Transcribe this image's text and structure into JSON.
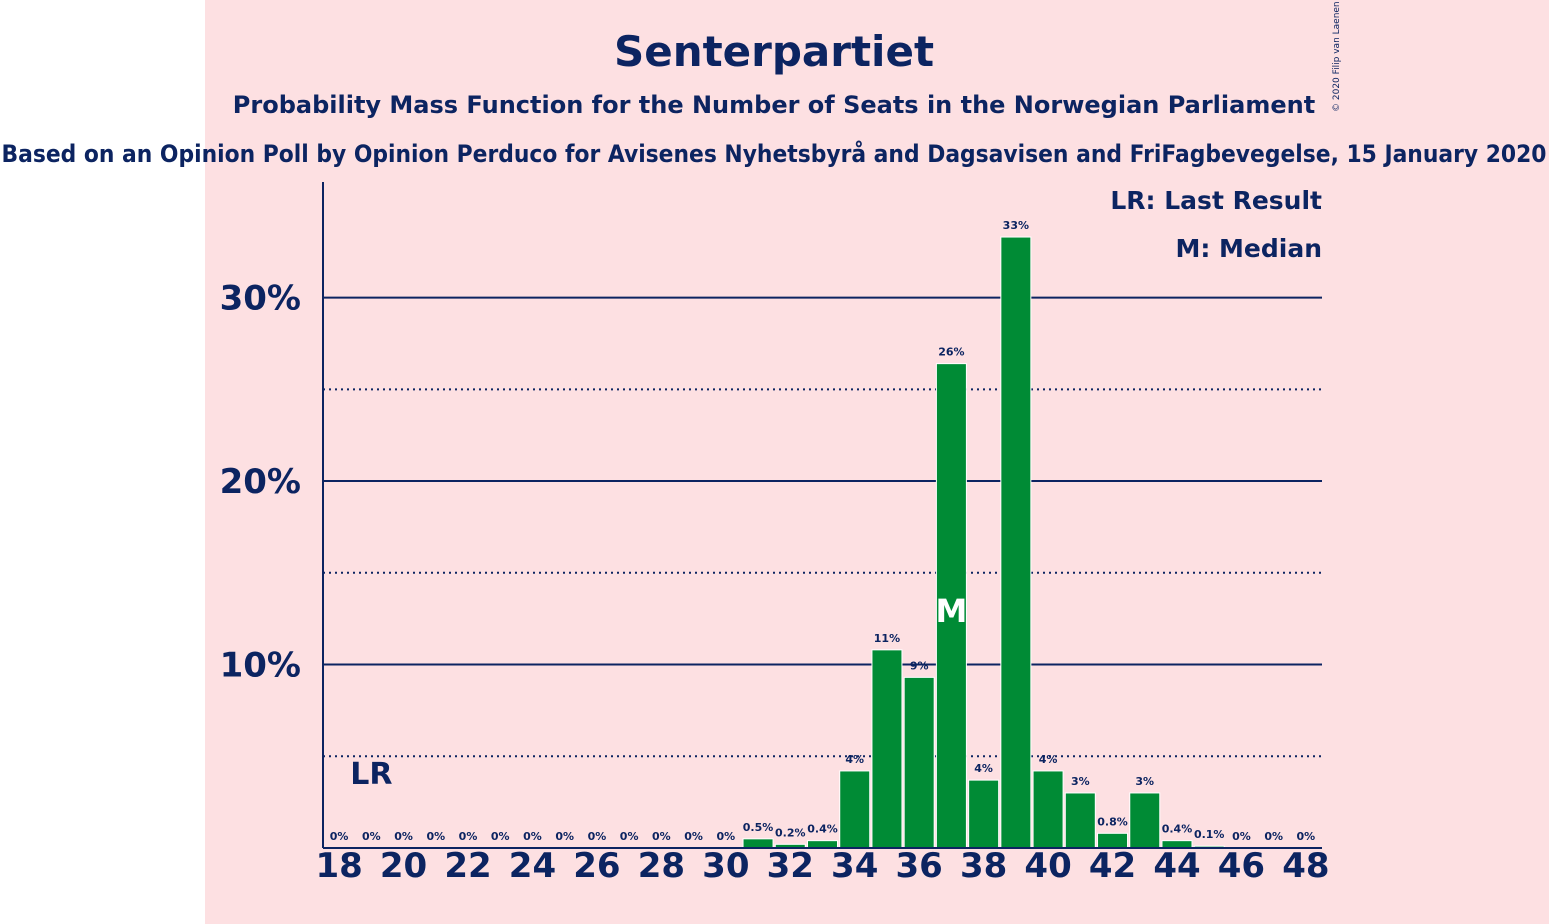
{
  "chart_data": {
    "type": "bar",
    "title": "Senterpartiet",
    "subtitle": "Probability Mass Function for the Number of Seats in the Norwegian Parliament",
    "subtitle2": "Based on an Opinion Poll by Opinion Perduco for Avisenes Nyhetsbyrå and Dagsavisen and FriFagbevegelse, 15 January 2020",
    "copyright": "© 2020 Filip van Laenen",
    "x": [
      18,
      19,
      20,
      21,
      22,
      23,
      24,
      25,
      26,
      27,
      28,
      29,
      30,
      31,
      32,
      33,
      34,
      35,
      36,
      37,
      38,
      39,
      40,
      41,
      42,
      43,
      44,
      45,
      46,
      47,
      48
    ],
    "values": [
      0,
      0,
      0,
      0,
      0,
      0,
      0,
      0,
      0,
      0,
      0,
      0,
      0,
      0.5,
      0.2,
      0.4,
      4.2,
      10.8,
      9.3,
      26.4,
      3.7,
      33.3,
      4.2,
      3.0,
      0.8,
      3.0,
      0.4,
      0.1,
      0,
      0,
      0
    ],
    "value_labels": [
      "0%",
      "0%",
      "0%",
      "0%",
      "0%",
      "0%",
      "0%",
      "0%",
      "0%",
      "0%",
      "0%",
      "0%",
      "0%",
      "0.5%",
      "0.2%",
      "0.4%",
      "4%",
      "11%",
      "9%",
      "26%",
      "4%",
      "33%",
      "4%",
      "3%",
      "0.8%",
      "3%",
      "0.4%",
      "0.1%",
      "0%",
      "0%",
      "0%"
    ],
    "x_ticks": [
      18,
      20,
      22,
      24,
      26,
      28,
      30,
      32,
      34,
      36,
      38,
      40,
      42,
      44,
      46,
      48
    ],
    "y_ticks_major": [
      10,
      20,
      30
    ],
    "y_ticks_minor": [
      5,
      15,
      25
    ],
    "y_tick_labels": [
      "10%",
      "20%",
      "30%"
    ],
    "ylim": [
      0,
      36.3
    ],
    "xlim": [
      17.5,
      48.5
    ],
    "last_result": 19,
    "last_result_label": "LR",
    "median": 37,
    "median_label": "M",
    "legend": [
      "LR: Last Result",
      "M: Median"
    ],
    "legend_position": "top-right",
    "colors": {
      "bar": "#008b35",
      "text": "#0c2461",
      "band": "#fde0e2",
      "background": "#ffffff"
    }
  }
}
